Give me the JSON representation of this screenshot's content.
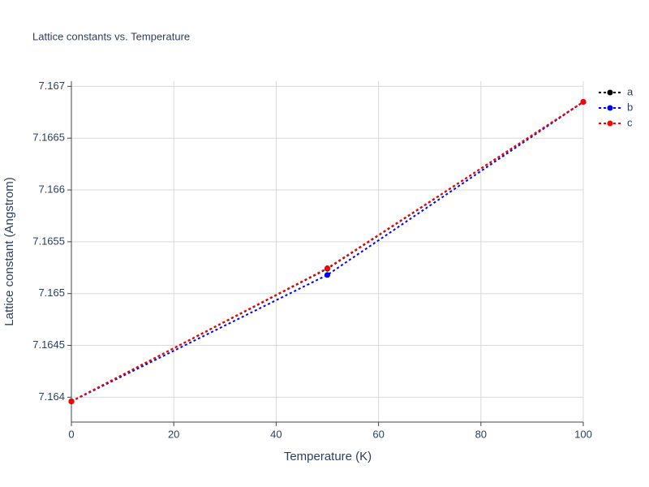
{
  "chart_data": {
    "type": "line",
    "title": "Lattice constants vs. Temperature",
    "x_label": "Temperature (K)",
    "y_label": "Lattice constant (Angstrom)",
    "x": [
      0,
      50,
      100
    ],
    "series": [
      {
        "name": "a",
        "color": "#000000",
        "values": [
          7.16396,
          7.16524,
          7.16685
        ]
      },
      {
        "name": "b",
        "color": "#0000ff",
        "values": [
          7.16396,
          7.16518,
          7.16685
        ]
      },
      {
        "name": "c",
        "color": "#ff0000",
        "values": [
          7.16396,
          7.165245,
          7.16685
        ]
      }
    ],
    "xlim": [
      0,
      100
    ],
    "xticks": [
      0,
      20,
      40,
      60,
      80,
      100
    ],
    "ylim": [
      7.16376,
      7.16705
    ],
    "yticks": [
      7.164,
      7.1645,
      7.165,
      7.1655,
      7.166,
      7.1665,
      7.167
    ],
    "grid": true,
    "legend": "right"
  }
}
